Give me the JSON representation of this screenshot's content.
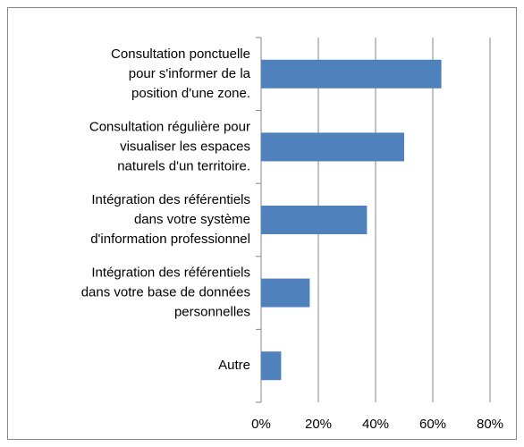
{
  "chart_data": {
    "type": "barh",
    "categories": [
      [
        "Consultation ponctuelle",
        "pour s'informer de la",
        "position d'une zone."
      ],
      [
        "Consultation régulière pour",
        "visualiser les espaces",
        "naturels d'un territoire."
      ],
      [
        "Intégration des référentiels",
        "dans votre système",
        "d'information professionnel"
      ],
      [
        "Intégration des référentiels",
        "dans votre base de données",
        "personnelles"
      ],
      [
        "Autre"
      ]
    ],
    "values": [
      63,
      50,
      37,
      17,
      7
    ],
    "color": "#4f81bd",
    "xlim": [
      0,
      80
    ],
    "xticks": [
      {
        "value": 0,
        "label": "0%"
      },
      {
        "value": 20,
        "label": "20%"
      },
      {
        "value": 40,
        "label": "40%"
      },
      {
        "value": 60,
        "label": "60%"
      },
      {
        "value": 80,
        "label": "80%"
      }
    ],
    "grid": true
  }
}
